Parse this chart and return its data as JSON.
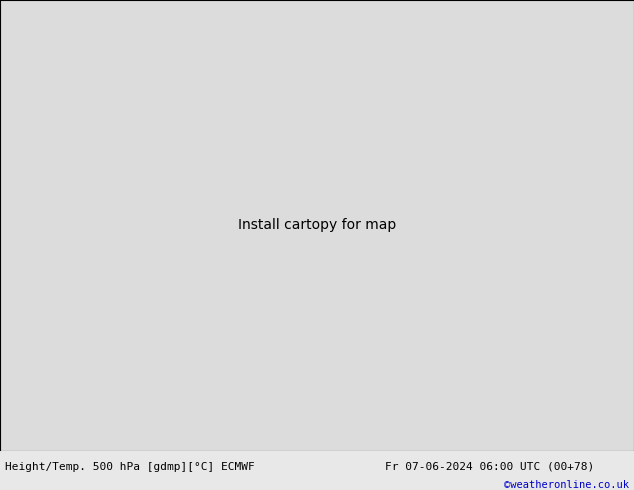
{
  "title_left": "Height/Temp. 500 hPa [gdmp][°C] ECMWF",
  "title_right": "Fr 07-06-2024 06:00 UTC (00+78)",
  "credit": "©weatheronline.co.uk",
  "bg_color": "#dcdcdc",
  "land_green": "#b8d8a0",
  "land_gray": "#c8c8c8",
  "sea_color": "#dcdcdc",
  "figsize": [
    6.34,
    4.9
  ],
  "dpi": 100,
  "bottom_bar_color": "#e8e8e8",
  "credit_color": "#0000cc",
  "black": "#000000",
  "orange": "#cc7700",
  "red": "#dd0000",
  "magenta": "#cc00cc",
  "green": "#00aa00"
}
